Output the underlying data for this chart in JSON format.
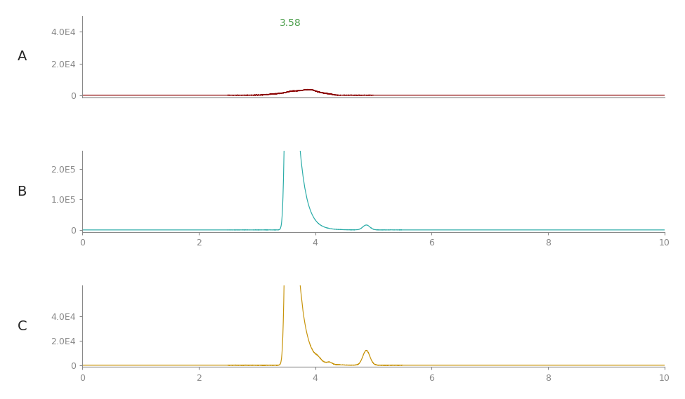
{
  "panel_labels": [
    "A",
    "B",
    "C"
  ],
  "label_color": "#222222",
  "annotation_color": "#4a9e4a",
  "tick_label_color": "#3333aa",
  "x_range": [
    0,
    10
  ],
  "x_ticks": [
    0,
    2,
    4,
    6,
    8,
    10
  ],
  "panels": [
    {
      "id": "A",
      "color": "#8b0000",
      "ylim": [
        -1500,
        50000
      ],
      "yticks": [
        0,
        20000,
        40000
      ],
      "yticklabels": [
        "0",
        "2.0E4",
        "4.0E4"
      ],
      "show_annotation": false,
      "has_xticks": false
    },
    {
      "id": "B",
      "color": "#2aaca8",
      "ylim": [
        -8000,
        260000
      ],
      "yticks": [
        0,
        100000,
        200000
      ],
      "yticklabels": [
        "0",
        "1.0E5",
        "2.0E5"
      ],
      "show_annotation": true,
      "annotation_text": "3.58",
      "has_xticks": true
    },
    {
      "id": "C",
      "color": "#c8940a",
      "ylim": [
        -1500,
        65000
      ],
      "yticks": [
        0,
        20000,
        40000
      ],
      "yticklabels": [
        "0",
        "2.0E4",
        "4.0E4"
      ],
      "show_annotation": true,
      "annotation_text": "3.58",
      "has_xticks": true
    }
  ],
  "background_color": "#ffffff",
  "figure_bg": "#ffffff"
}
